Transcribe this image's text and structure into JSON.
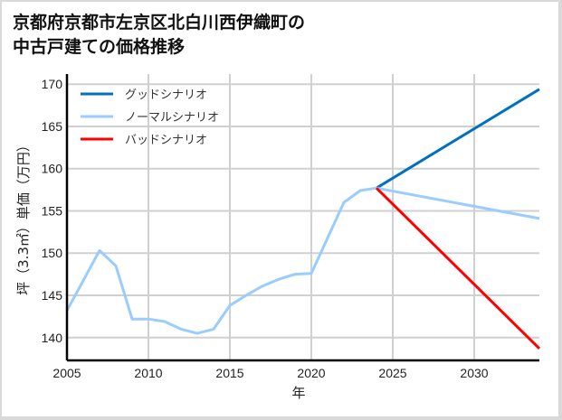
{
  "title_line1": "京都府京都市左京区北白川西伊織町の",
  "title_line2": "中古戸建ての価格推移",
  "chart_data": {
    "type": "line",
    "title": "京都府京都市左京区北白川西伊織町の中古戸建ての価格推移",
    "xlabel": "年",
    "ylabel": "坪（3.3㎡）単価（万円）",
    "xlim": [
      2005,
      2034
    ],
    "ylim": [
      137.3,
      171.2
    ],
    "xticks": [
      2005,
      2010,
      2015,
      2020,
      2025,
      2030
    ],
    "yticks": [
      140,
      145,
      150,
      155,
      160,
      165,
      170
    ],
    "grid": true,
    "legend_position": "upper left",
    "series": [
      {
        "name": "グッドシナリオ",
        "color": "#0070c0",
        "x": [
          2024,
          2034
        ],
        "y": [
          157.7,
          169.4
        ]
      },
      {
        "name": "ノーマルシナリオ",
        "color": "#99ccff",
        "x": [
          2005,
          2007,
          2008,
          2009,
          2010,
          2011,
          2012,
          2013,
          2014,
          2015,
          2016,
          2017,
          2018,
          2019,
          2020,
          2022,
          2023,
          2024,
          2034
        ],
        "y": [
          143.2,
          150.3,
          148.5,
          142.2,
          142.2,
          141.9,
          141.0,
          140.5,
          141.0,
          143.8,
          145.0,
          146.1,
          146.9,
          147.5,
          147.6,
          156.0,
          157.4,
          157.7,
          154.1
        ]
      },
      {
        "name": "バッドシナリオ",
        "color": "#ff0000",
        "x": [
          2024,
          2034
        ],
        "y": [
          157.7,
          138.7
        ]
      }
    ]
  }
}
